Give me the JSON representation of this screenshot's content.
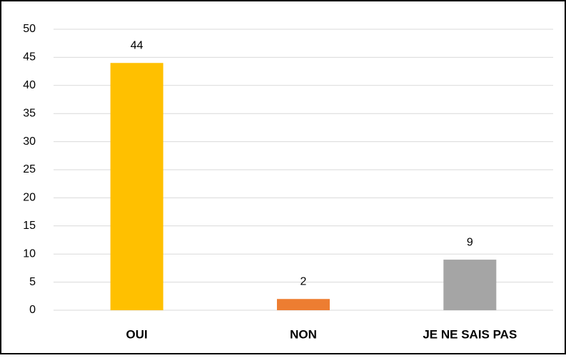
{
  "chart_data": {
    "type": "bar",
    "categories": [
      "OUI",
      "NON",
      "JE NE SAIS PAS"
    ],
    "values": [
      44,
      2,
      9
    ],
    "colors": [
      "#ffc000",
      "#ed7d31",
      "#a5a5a5"
    ],
    "ylim": [
      0,
      50
    ],
    "yticks": [
      0,
      5,
      10,
      15,
      20,
      25,
      30,
      35,
      40,
      45,
      50
    ],
    "grid": true
  }
}
